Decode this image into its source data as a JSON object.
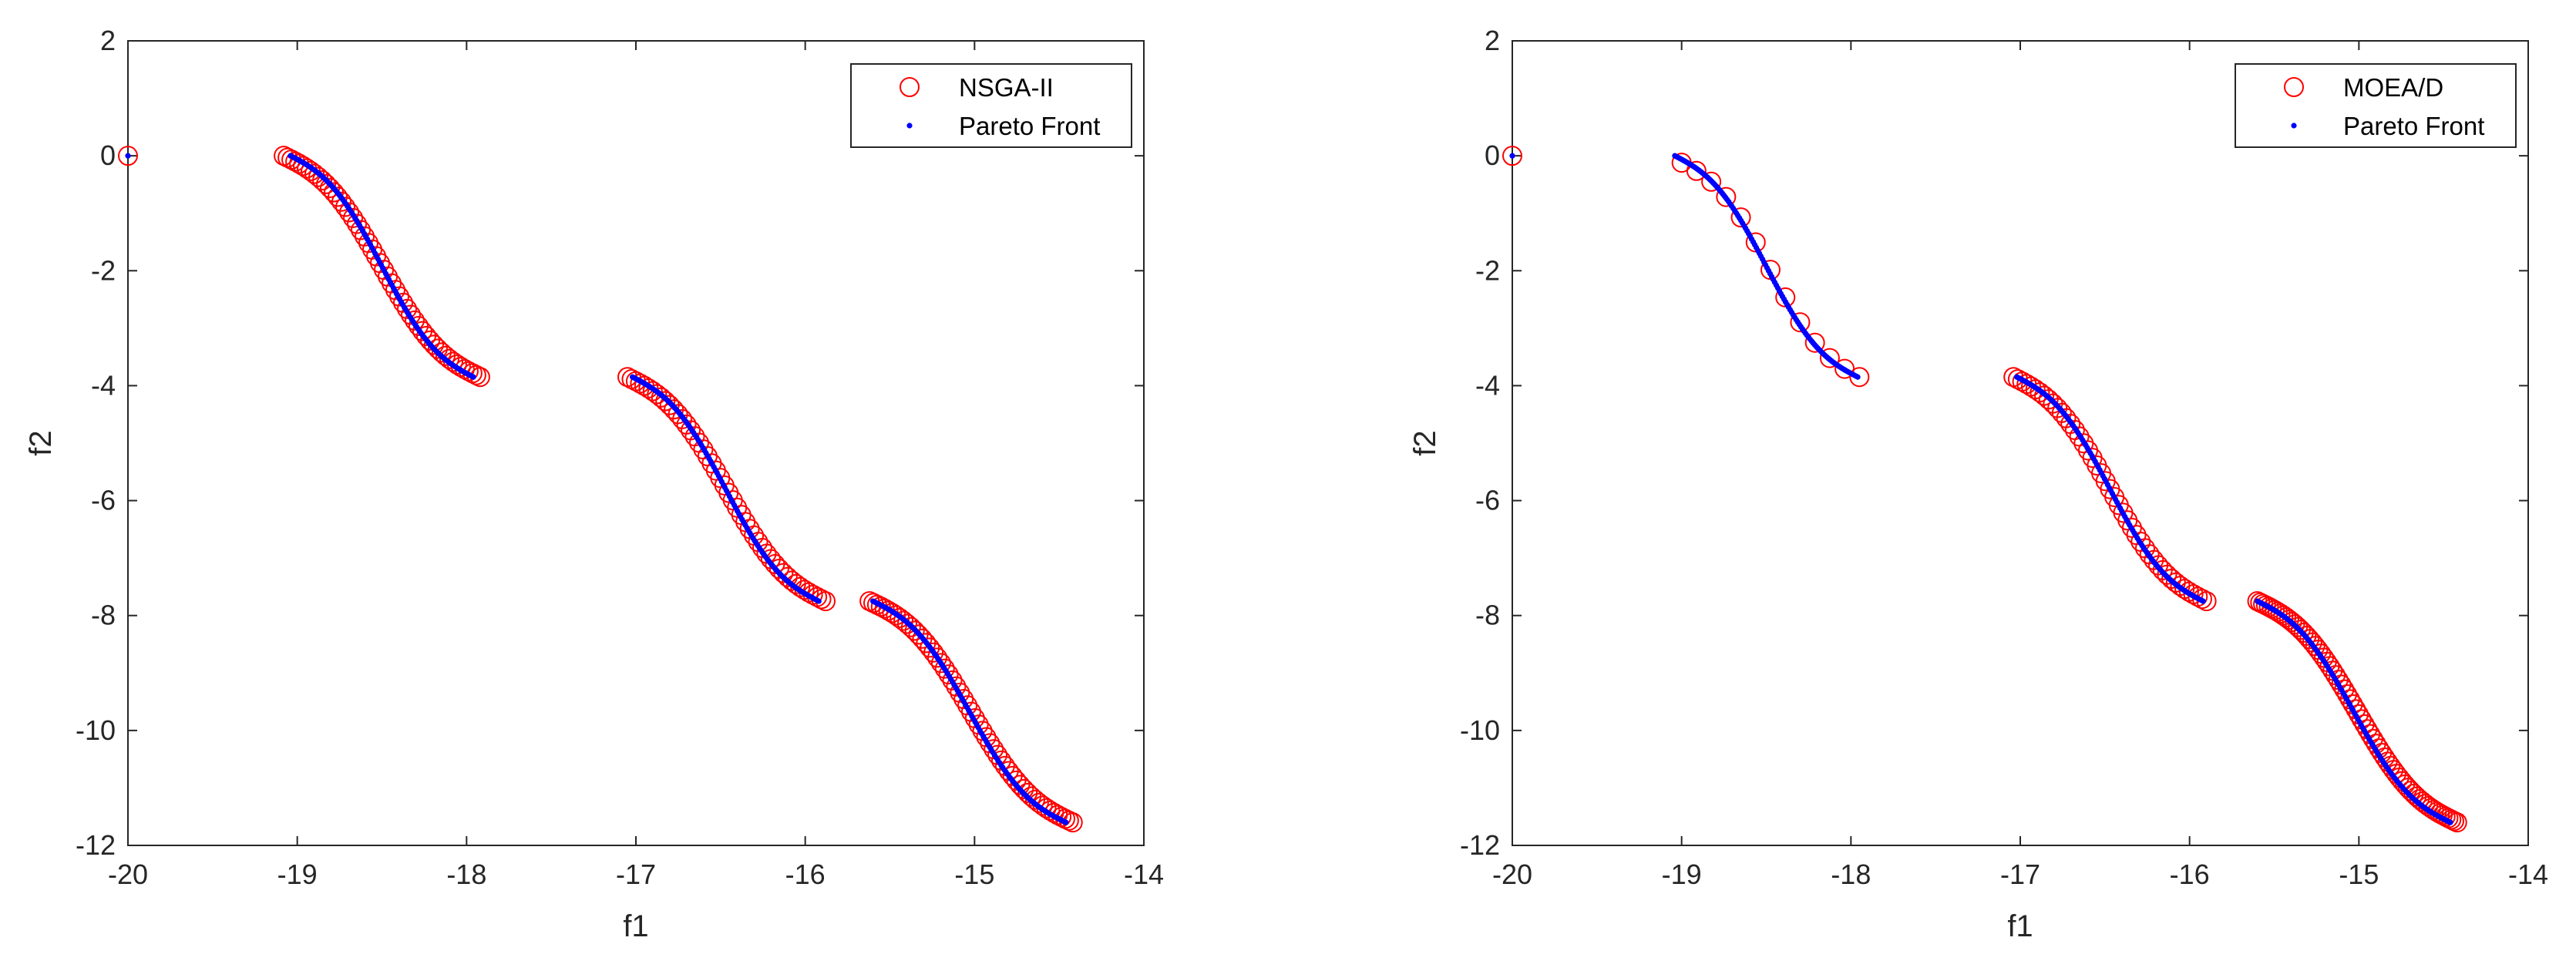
{
  "chart_data": [
    {
      "type": "scatter",
      "title": "",
      "xlabel": "f1",
      "ylabel": "f2",
      "xlim": [
        -20,
        -14
      ],
      "ylim": [
        -12,
        2
      ],
      "xticks": [
        "-20",
        "-19",
        "-18",
        "-17",
        "-16",
        "-15",
        "-14"
      ],
      "yticks": [
        "2",
        "0",
        "-2",
        "-4",
        "-6",
        "-8",
        "-10",
        "-12"
      ],
      "grid": false,
      "legend_position": "top-right",
      "series": [
        {
          "name": "NSGA-II",
          "marker": "open-circle",
          "color": "#ff0000",
          "isolated_points": [
            [
              -20.0,
              0.0
            ]
          ],
          "segments": [
            {
              "x_start": -19.08,
              "x_end": -17.92,
              "y_start": 0.0,
              "y_end": -3.85,
              "points": 52
            },
            {
              "x_start": -17.05,
              "x_end": -15.88,
              "y_start": -3.85,
              "y_end": -7.75,
              "points": 48
            },
            {
              "x_start": -15.62,
              "x_end": -14.42,
              "y_start": -7.75,
              "y_end": -11.6,
              "points": 55
            }
          ]
        },
        {
          "name": "Pareto Front",
          "marker": "dot",
          "color": "#0000ff",
          "isolated_points": [
            [
              -20.0,
              0.0
            ]
          ],
          "segments": [
            {
              "x_start": -19.04,
              "x_end": -17.96,
              "y_start": 0.0,
              "y_end": -3.85,
              "points": 120
            },
            {
              "x_start": -17.02,
              "x_end": -15.92,
              "y_start": -3.85,
              "y_end": -7.75,
              "points": 120
            },
            {
              "x_start": -15.6,
              "x_end": -14.46,
              "y_start": -7.75,
              "y_end": -11.6,
              "points": 120
            }
          ]
        }
      ]
    },
    {
      "type": "scatter",
      "title": "",
      "xlabel": "f1",
      "ylabel": "f2",
      "xlim": [
        -20,
        -14
      ],
      "ylim": [
        -12,
        2
      ],
      "xticks": [
        "-20",
        "-19",
        "-18",
        "-17",
        "-16",
        "-15",
        "-14"
      ],
      "yticks": [
        "2",
        "0",
        "-2",
        "-4",
        "-6",
        "-8",
        "-10",
        "-12"
      ],
      "grid": false,
      "legend_position": "top-right",
      "series": [
        {
          "name": "MOEA/D",
          "marker": "open-circle",
          "color": "#ff0000",
          "isolated_points": [
            [
              -20.0,
              0.0
            ]
          ],
          "segments": [
            {
              "x_start": -19.0,
              "x_end": -17.95,
              "y_start": -0.12,
              "y_end": -3.85,
              "points": 13
            },
            {
              "x_start": -17.04,
              "x_end": -15.9,
              "y_start": -3.85,
              "y_end": -7.75,
              "points": 45
            },
            {
              "x_start": -15.6,
              "x_end": -14.42,
              "y_start": -7.75,
              "y_end": -11.6,
              "points": 70
            }
          ]
        },
        {
          "name": "Pareto Front",
          "marker": "dot",
          "color": "#0000ff",
          "isolated_points": [
            [
              -20.0,
              0.0
            ]
          ],
          "segments": [
            {
              "x_start": -19.04,
              "x_end": -17.96,
              "y_start": 0.0,
              "y_end": -3.85,
              "points": 120
            },
            {
              "x_start": -17.02,
              "x_end": -15.92,
              "y_start": -3.85,
              "y_end": -7.75,
              "points": 120
            },
            {
              "x_start": -15.6,
              "x_end": -14.46,
              "y_start": -7.75,
              "y_end": -11.6,
              "points": 120
            }
          ]
        }
      ]
    }
  ]
}
